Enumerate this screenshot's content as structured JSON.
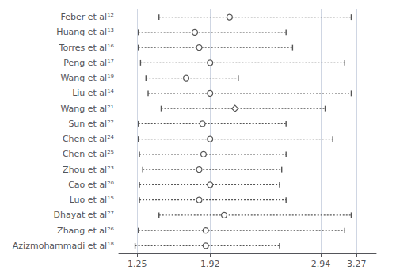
{
  "chart_data": {
    "type": "forest",
    "categories": [
      "Feber et al¹²",
      "Huang et al¹³",
      "Torres et al¹⁶",
      "Peng et al¹⁷",
      "Wang et al¹⁹",
      "Liu et al¹⁴",
      "Wang et al²¹",
      "Sun et al²²",
      "Chen et al²⁴",
      "Chen et al²⁵",
      "Zhou et al²³",
      "Cao et al²⁰",
      "Luo et al¹⁵",
      "Dhayat et al²⁷",
      "Zhang et al²⁶",
      "Azizmohammadi et al¹⁸"
    ],
    "series": [
      {
        "marker": "circle",
        "color": "#555555",
        "values": [
          2.1,
          1.78,
          1.82,
          1.92,
          1.7,
          1.92,
          null,
          1.85,
          1.92,
          1.86,
          1.82,
          1.92,
          1.82,
          2.05,
          1.88,
          1.88
        ],
        "ci_low": [
          1.45,
          1.26,
          1.26,
          1.28,
          1.33,
          1.35,
          null,
          1.26,
          1.26,
          1.27,
          1.3,
          1.27,
          1.27,
          1.45,
          1.26,
          1.23
        ],
        "ci_high": [
          3.22,
          2.62,
          2.68,
          3.16,
          2.18,
          3.22,
          null,
          2.62,
          3.05,
          2.62,
          2.58,
          2.56,
          2.62,
          3.22,
          3.16,
          2.56
        ]
      },
      {
        "marker": "diamond",
        "color": "#555555",
        "values": [
          null,
          null,
          null,
          null,
          null,
          null,
          2.15,
          null,
          null,
          null,
          null,
          null,
          null,
          null,
          null,
          null
        ],
        "ci_low": [
          null,
          null,
          null,
          null,
          null,
          null,
          1.47,
          null,
          null,
          null,
          null,
          null,
          null,
          null,
          null,
          null
        ],
        "ci_high": [
          null,
          null,
          null,
          null,
          null,
          null,
          2.98,
          null,
          null,
          null,
          null,
          null,
          null,
          null,
          null,
          null
        ]
      }
    ],
    "xlim": [
      1.08,
      3.45
    ],
    "xticks": [
      1.25,
      1.92,
      2.94,
      3.27
    ],
    "grid": true
  }
}
